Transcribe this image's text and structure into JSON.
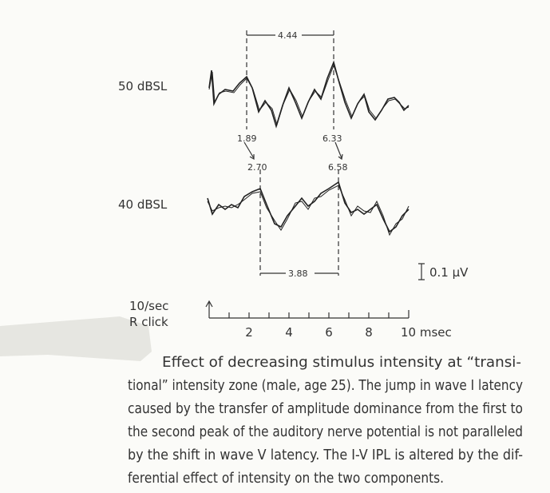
{
  "figure": {
    "traces": [
      {
        "label": "50 dBSL",
        "peaks": [
          "1.89",
          "6.33"
        ]
      },
      {
        "label": "40 dBSL",
        "peaks": [
          "2.70",
          "6.58"
        ]
      }
    ],
    "intervals": [
      "4.44",
      "3.88"
    ],
    "scale": "0.1 μV",
    "stimulus": [
      "10/sec",
      "R click"
    ],
    "time_axis": [
      "2",
      "4",
      "6",
      "8",
      "10 msec"
    ]
  },
  "caption": {
    "lines": [
      "Effect of decreasing stimulus intensity at “transi-",
      "tional” intensity zone (male, age 25). The jump in wave I latency",
      "caused by the transfer of amplitude dominance from the first to",
      "the second peak of the auditory nerve potential is not paralleled",
      "by the shift in wave V latency. The I-V IPL is altered by the dif-",
      "ferential effect of intensity on the two components."
    ]
  }
}
